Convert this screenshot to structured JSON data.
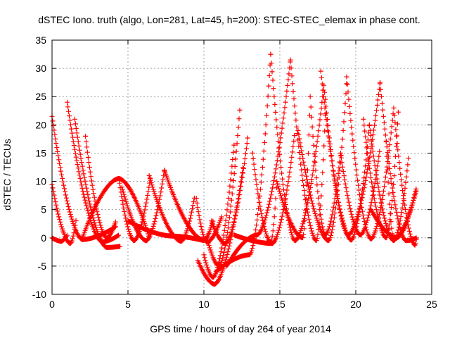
{
  "chart_data": {
    "type": "scatter",
    "title": "dSTEC Iono. truth (algo, Lon=281, Lat=45, h=200): STEC-STEC_elemax in phase cont.",
    "xlabel": "GPS time / hours of day 264 of year 2014",
    "ylabel": "dSTEC  / TECUs",
    "xlim": [
      0,
      25
    ],
    "ylim": [
      -10,
      35
    ],
    "xticks": [
      0,
      5,
      10,
      15,
      20,
      25
    ],
    "yticks": [
      -10,
      -5,
      0,
      5,
      10,
      15,
      20,
      25,
      30,
      35
    ],
    "grid": true,
    "marker": "+",
    "series_color": "#ff0000",
    "arcs": [
      {
        "start": 0.0,
        "min_t": 2.0,
        "min_v": -0.3,
        "end": 4.2,
        "start_v": 21.5,
        "end_v": 2.0
      },
      {
        "start": 0.0,
        "min_t": 1.2,
        "min_v": -1.0,
        "end": 1.6,
        "start_v": 9.5,
        "end_v": 3.5
      },
      {
        "start": 0.0,
        "min_t": 0.6,
        "min_v": -0.6,
        "end": 1.0,
        "start_v": 0.0,
        "end_v": 0.5
      },
      {
        "start": 1.0,
        "min_t": 3.3,
        "min_v": -0.7,
        "end": 4.4,
        "start_v": 24.0,
        "end_v": 0.5
      },
      {
        "start": 1.5,
        "min_t": 3.6,
        "min_v": -1.7,
        "end": 4.5,
        "start_v": 21.0,
        "end_v": -1.5
      },
      {
        "start": 2.2,
        "min_t": 3.6,
        "min_v": 0.0,
        "end": 4.2,
        "start_v": 18.0,
        "end_v": 3.0
      },
      {
        "start": 2.0,
        "min_t": 4.4,
        "min_v": 10.5,
        "end": 6.4,
        "start_v": 0.0,
        "end_v": 0.0
      },
      {
        "start": 4.4,
        "min_t": 5.4,
        "min_v": -0.5,
        "end": 6.5,
        "start_v": 10.5,
        "end_v": 11.0
      },
      {
        "start": 4.6,
        "min_t": 6.2,
        "min_v": -0.5,
        "end": 7.4,
        "start_v": 9.0,
        "end_v": 12.0
      },
      {
        "start": 6.4,
        "min_t": 8.5,
        "min_v": -0.6,
        "end": 9.4,
        "start_v": 11.0,
        "end_v": 7.5
      },
      {
        "start": 7.4,
        "min_t": 10.0,
        "min_v": -0.4,
        "end": 10.6,
        "start_v": 12.0,
        "end_v": 3.0
      },
      {
        "start": 5.0,
        "min_t": 8.0,
        "min_v": 0.3,
        "end": 10.0,
        "start_v": 3.0,
        "end_v": -0.5
      },
      {
        "start": 9.5,
        "min_t": 10.2,
        "min_v": -0.8,
        "end": 11.2,
        "start_v": 7.0,
        "end_v": 4.0
      },
      {
        "start": 9.6,
        "min_t": 10.7,
        "min_v": -8.2,
        "end": 12.6,
        "start_v": -4.0,
        "end_v": 13.0
      },
      {
        "start": 10.0,
        "min_t": 10.6,
        "min_v": -7.0,
        "end": 12.0,
        "start_v": -3.0,
        "end_v": 17.0
      },
      {
        "start": 10.2,
        "min_t": 11.0,
        "min_v": -5.0,
        "end": 12.4,
        "start_v": 0.0,
        "end_v": 24.0
      },
      {
        "start": 10.5,
        "min_t": 11.4,
        "min_v": -1.0,
        "end": 12.9,
        "start_v": 3.0,
        "end_v": 18.0
      },
      {
        "start": 10.8,
        "min_t": 13.0,
        "min_v": -3.0,
        "end": 14.4,
        "start_v": -6.0,
        "end_v": 32.5
      },
      {
        "start": 11.5,
        "min_t": 13.5,
        "min_v": 0.5,
        "end": 15.7,
        "start_v": -5.0,
        "end_v": 31.5
      },
      {
        "start": 12.0,
        "min_t": 14.5,
        "min_v": -1.0,
        "end": 16.0,
        "start_v": 0.5,
        "end_v": 19.0
      },
      {
        "start": 13.2,
        "min_t": 14.4,
        "min_v": -0.8,
        "end": 14.8,
        "start_v": 15.0,
        "end_v": 10.0
      },
      {
        "start": 14.4,
        "min_t": 16.0,
        "min_v": -0.5,
        "end": 17.9,
        "start_v": 32.5,
        "end_v": 27.0
      },
      {
        "start": 15.7,
        "min_t": 17.4,
        "min_v": -0.5,
        "end": 18.0,
        "start_v": 31.5,
        "end_v": 22.0
      },
      {
        "start": 14.8,
        "min_t": 16.5,
        "min_v": 0.0,
        "end": 17.0,
        "start_v": 10.0,
        "end_v": 25.0
      },
      {
        "start": 16.2,
        "min_t": 18.2,
        "min_v": -0.5,
        "end": 19.4,
        "start_v": 19.0,
        "end_v": 27.5
      },
      {
        "start": 17.0,
        "min_t": 18.0,
        "min_v": 0.5,
        "end": 19.0,
        "start_v": 25.0,
        "end_v": 15.0
      },
      {
        "start": 17.7,
        "min_t": 19.7,
        "min_v": -0.4,
        "end": 20.9,
        "start_v": 29.5,
        "end_v": 20.0
      },
      {
        "start": 17.9,
        "min_t": 19.5,
        "min_v": 0.5,
        "end": 21.6,
        "start_v": 27.0,
        "end_v": 27.5
      },
      {
        "start": 19.4,
        "min_t": 21.0,
        "min_v": -0.2,
        "end": 22.5,
        "start_v": 28.5,
        "end_v": 23.0
      },
      {
        "start": 20.9,
        "min_t": 22.5,
        "min_v": -0.5,
        "end": 23.5,
        "start_v": 20.0,
        "end_v": 15.0
      },
      {
        "start": 21.6,
        "min_t": 23.3,
        "min_v": -0.5,
        "end": 24.0,
        "start_v": 27.5,
        "end_v": 0.0
      },
      {
        "start": 20.5,
        "min_t": 22.0,
        "min_v": 0.0,
        "end": 22.8,
        "start_v": 21.0,
        "end_v": 22.5
      },
      {
        "start": 22.5,
        "min_t": 23.9,
        "min_v": -1.3,
        "end": 24.0,
        "start_v": 23.0,
        "end_v": 0.0
      },
      {
        "start": 22.0,
        "min_t": 22.5,
        "min_v": -0.3,
        "end": 24.0,
        "start_v": 17.0,
        "end_v": 8.5
      },
      {
        "start": 21.0,
        "min_t": 22.7,
        "min_v": 0.0,
        "end": 24.0,
        "start_v": 5.0,
        "end_v": 9.0
      },
      {
        "start": 19.0,
        "min_t": 20.3,
        "min_v": 0.5,
        "end": 21.6,
        "start_v": 15.0,
        "end_v": 16.0
      }
    ]
  }
}
